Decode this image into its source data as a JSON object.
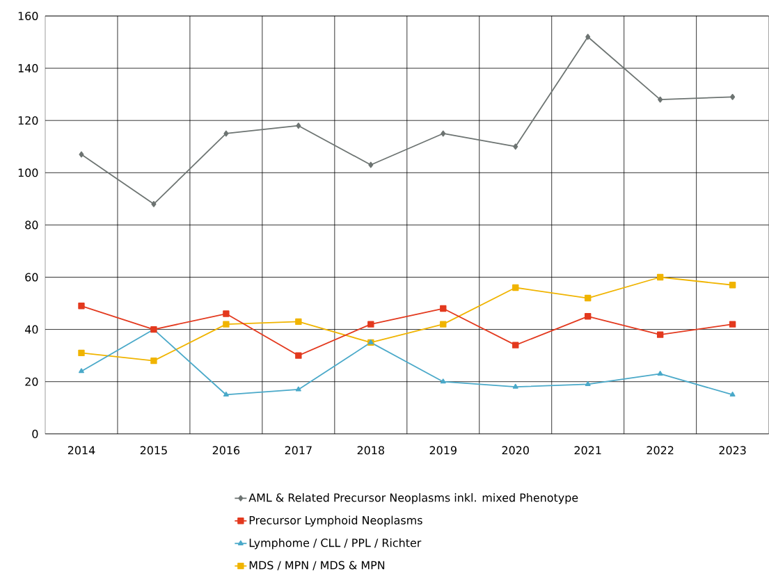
{
  "chart_data": {
    "type": "line",
    "categories": [
      "2014",
      "2015",
      "2016",
      "2017",
      "2018",
      "2019",
      "2020",
      "2021",
      "2022",
      "2023"
    ],
    "series": [
      {
        "name": "AML & Related Precursor Neoplasms inkl. mixed Phenotype",
        "color": "#6d7472",
        "marker": "diamond",
        "values": [
          107,
          88,
          115,
          118,
          103,
          115,
          110,
          152,
          128,
          129
        ]
      },
      {
        "name": "Precursor Lymphoid Neoplasms",
        "color": "#e3391e",
        "marker": "square",
        "values": [
          49,
          40,
          46,
          30,
          42,
          48,
          34,
          45,
          38,
          42
        ]
      },
      {
        "name": "Lymphome / CLL / PPL / Richter",
        "color": "#4aa9c9",
        "marker": "triangle",
        "values": [
          24,
          40,
          15,
          17,
          35,
          20,
          18,
          19,
          23,
          15
        ]
      },
      {
        "name": "MDS / MPN / MDS & MPN",
        "color": "#f0b400",
        "marker": "square",
        "values": [
          31,
          28,
          42,
          43,
          35,
          42,
          56,
          52,
          60,
          57
        ]
      }
    ],
    "ylim": [
      0,
      160
    ],
    "yticks": [
      0,
      20,
      40,
      60,
      80,
      100,
      120,
      140,
      160
    ],
    "grid": true,
    "legend": "bottom",
    "line_style": "solid"
  }
}
